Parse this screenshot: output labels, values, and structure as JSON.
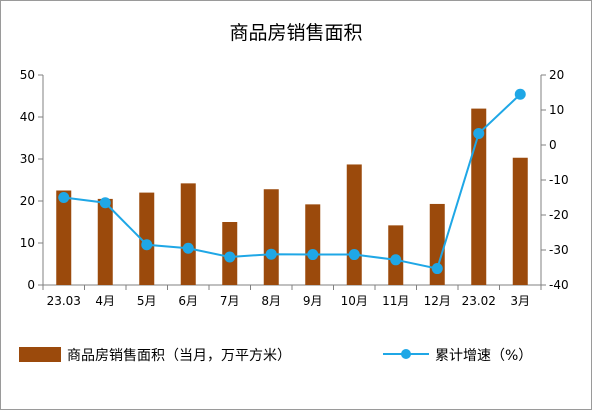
{
  "chart_data": {
    "type": "bar+line",
    "title": "商品房销售面积",
    "categories": [
      "23.03",
      "4月",
      "5月",
      "6月",
      "7月",
      "8月",
      "9月",
      "10月",
      "11月",
      "12月",
      "23.02",
      "3月"
    ],
    "series": [
      {
        "name": "商品房销售面积（当月，万平方米）",
        "type": "bar",
        "axis": "left",
        "color": "#9b4a0c",
        "values": [
          22.5,
          20.5,
          22.0,
          24.2,
          15.0,
          22.8,
          19.2,
          28.7,
          14.2,
          19.3,
          42.0,
          30.3
        ]
      },
      {
        "name": "累计增速（%）",
        "type": "line",
        "axis": "right",
        "color": "#1fa7e6",
        "values": [
          -15.0,
          -16.5,
          -28.5,
          -29.5,
          -32.0,
          -31.2,
          -31.3,
          -31.3,
          -32.8,
          -35.3,
          3.3,
          14.5
        ]
      }
    ],
    "left_axis": {
      "ylim": [
        0,
        50
      ],
      "ticks": [
        0,
        10,
        20,
        30,
        40,
        50
      ]
    },
    "right_axis": {
      "ylim": [
        -40,
        20
      ],
      "ticks": [
        -40,
        -30,
        -20,
        -10,
        0,
        10,
        20
      ]
    },
    "grid": false,
    "legend": "bottom"
  }
}
